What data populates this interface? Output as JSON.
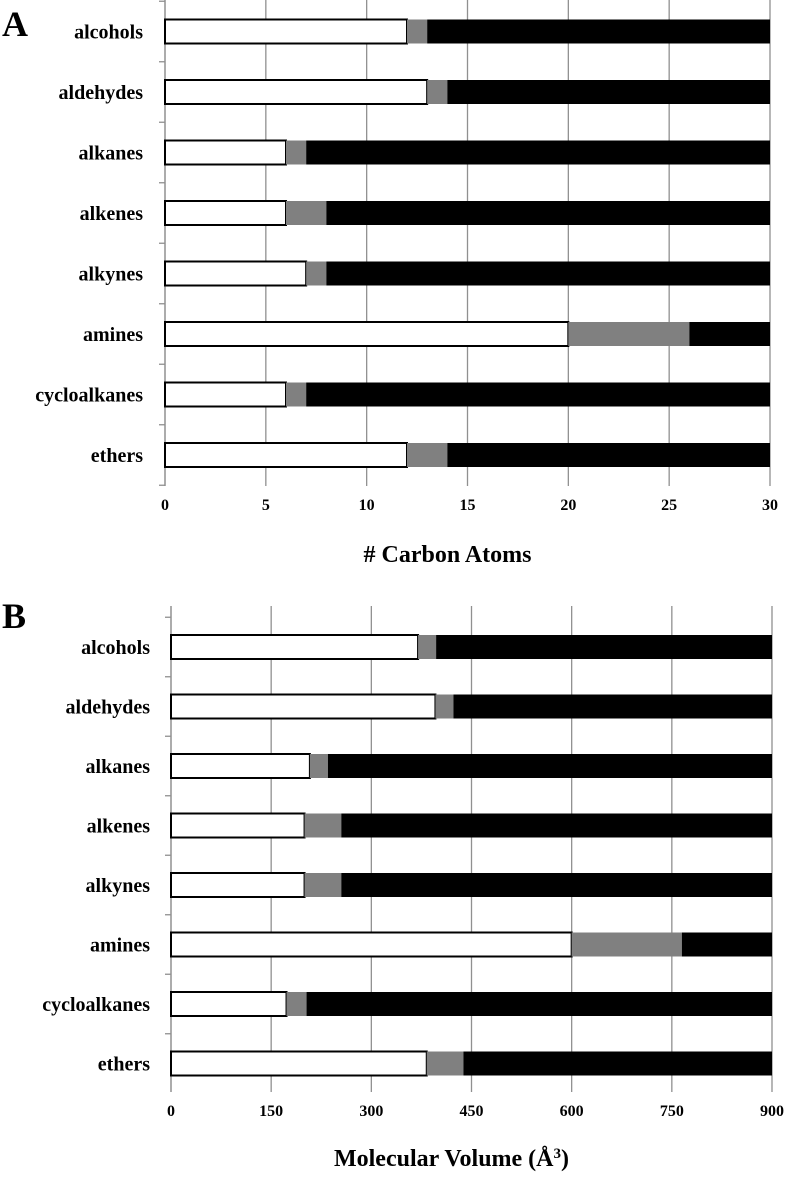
{
  "chart_data": [
    {
      "type": "bar",
      "orientation": "horizontal",
      "stacked": true,
      "panel_letter": "A",
      "categories": [
        "alcohols",
        "aldehydes",
        "alkanes",
        "alkenes",
        "alkynes",
        "amines",
        "cycloalkanes",
        "ethers"
      ],
      "series": [
        {
          "color": "#ffffff",
          "values": [
            12,
            13,
            6,
            6,
            7,
            20,
            6,
            12
          ]
        },
        {
          "color": "#808080",
          "values": [
            1,
            1,
            1,
            2,
            1,
            6,
            1,
            2
          ]
        },
        {
          "color": "#000000",
          "values": [
            17,
            16,
            23,
            22,
            22,
            4,
            23,
            16
          ]
        }
      ],
      "xlabel": "# Carbon Atoms",
      "xlim": [
        0,
        30
      ],
      "xticks": [
        0,
        5,
        10,
        15,
        20,
        25,
        30
      ],
      "grid": "vertical"
    },
    {
      "type": "bar",
      "orientation": "horizontal",
      "stacked": true,
      "panel_letter": "B",
      "categories": [
        "alcohols",
        "aldehydes",
        "alkanes",
        "alkenes",
        "alkynes",
        "amines",
        "cycloalkanes",
        "ethers"
      ],
      "series": [
        {
          "color": "#ffffff",
          "values": [
            370,
            396,
            208,
            200,
            200,
            600,
            173,
            383
          ]
        },
        {
          "color": "#808080",
          "values": [
            27,
            27,
            27,
            55,
            55,
            165,
            30,
            55
          ]
        },
        {
          "color": "#000000",
          "values": [
            503,
            477,
            665,
            645,
            645,
            135,
            697,
            462
          ]
        }
      ],
      "xlabel_main": "Molecular Volume (Å",
      "xlabel_sup": "3",
      "xlabel_end": ")",
      "xlim": [
        0,
        900
      ],
      "xticks": [
        0,
        150,
        300,
        450,
        600,
        750,
        900
      ],
      "grid": "vertical"
    }
  ]
}
